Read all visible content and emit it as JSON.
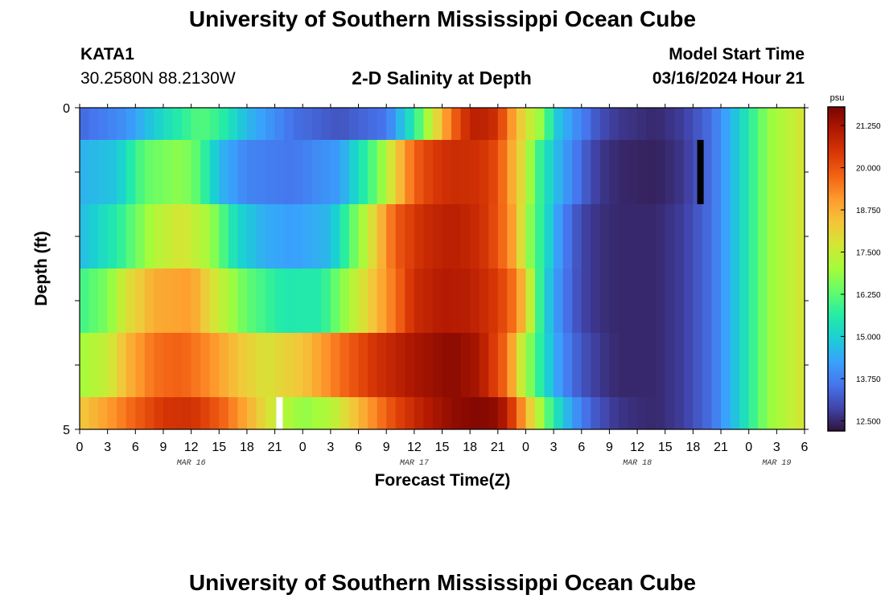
{
  "page": {
    "title_top": "University of Southern Mississippi Ocean Cube",
    "title_bottom": "University of Southern Mississippi Ocean Cube",
    "station_id": "KATA1",
    "station_coords": "30.2580N  88.2130W",
    "plot_title": "2-D Salinity at Depth",
    "model_start_label": "Model Start Time",
    "model_start_value": "03/16/2024 Hour 21"
  },
  "chart_data": {
    "type": "heatmap",
    "title": "2-D Salinity at Depth",
    "xlabel": "Forecast Time(Z)",
    "ylabel": "Depth (ft)",
    "x_tick_labels": [
      "0",
      "3",
      "6",
      "9",
      "12",
      "15",
      "18",
      "21",
      "0",
      "3",
      "6",
      "9",
      "12",
      "15",
      "18",
      "21",
      "0",
      "3",
      "6",
      "9",
      "12",
      "15",
      "18",
      "21",
      "0",
      "3",
      "6"
    ],
    "date_labels": [
      {
        "label": "MAR 16",
        "tick_index": 4
      },
      {
        "label": "MAR 17",
        "tick_index": 12
      },
      {
        "label": "MAR 18",
        "tick_index": 20
      },
      {
        "label": "MAR 19",
        "tick_index": 25
      }
    ],
    "x_hours_start": 0,
    "x_hours_end": 78,
    "y_tick_labels": [
      "0",
      "5"
    ],
    "ylim": [
      0,
      5
    ],
    "depth_layers": 5,
    "colorbar": {
      "unit": "psu",
      "min": 12.2,
      "max": 21.8,
      "tick_labels": [
        "21.250",
        "20.000",
        "18.750",
        "17.500",
        "16.250",
        "15.000",
        "13.750",
        "12.500"
      ],
      "tick_values": [
        21.25,
        20.0,
        18.75,
        17.5,
        16.25,
        15.0,
        13.75,
        12.5
      ],
      "colors": [
        "#30123b",
        "#4145ab",
        "#4675ed",
        "#39a2fc",
        "#1bcfd4",
        "#24eca6",
        "#61fc6c",
        "#a4fc3b",
        "#d1e834",
        "#f3c63a",
        "#fe9b2d",
        "#f36315",
        "#d93806",
        "#b11901",
        "#7a0402"
      ]
    },
    "current_time_marker_hour": 21.5,
    "start_time_marker_hour": 66.8,
    "rows": [
      {
        "depth_range": [
          0,
          0.5
        ],
        "hours": [
          0,
          5,
          9,
          13,
          15,
          18,
          23,
          28,
          33,
          36,
          38,
          40,
          42,
          43,
          45,
          46,
          48,
          50,
          51,
          53,
          55,
          56,
          58,
          62,
          65,
          68,
          71,
          74,
          78
        ],
        "values": [
          13.4,
          14.0,
          15.2,
          16.2,
          15.8,
          14.6,
          13.5,
          13.1,
          13.6,
          15.6,
          17.6,
          19.6,
          20.9,
          21.0,
          20.6,
          19.5,
          17.8,
          16.6,
          15.0,
          14.1,
          13.4,
          13.0,
          12.7,
          12.5,
          12.8,
          13.5,
          15.0,
          16.8,
          17.8
        ]
      },
      {
        "depth_range": [
          0.5,
          1.5
        ],
        "hours": [
          0,
          4,
          7,
          11,
          13,
          15,
          18,
          23,
          28,
          32,
          34,
          36,
          38,
          40,
          43,
          45,
          46,
          48,
          49,
          51,
          53,
          55,
          56,
          58,
          62,
          65,
          68,
          71,
          74,
          78
        ],
        "values": [
          14.5,
          14.8,
          16.3,
          16.8,
          16.1,
          14.6,
          13.8,
          13.6,
          14.2,
          16.4,
          18.2,
          19.8,
          20.4,
          20.7,
          20.6,
          20.1,
          19.2,
          17.6,
          16.2,
          14.8,
          13.8,
          13.0,
          12.7,
          12.5,
          12.4,
          12.7,
          13.5,
          15.0,
          16.8,
          17.8
        ]
      },
      {
        "depth_range": [
          1.5,
          2.5
        ],
        "hours": [
          0,
          4,
          8,
          11,
          14,
          17,
          20,
          23,
          27,
          31,
          34,
          37,
          40,
          43,
          45,
          47,
          48,
          50,
          52,
          54,
          56,
          58,
          62,
          65,
          68,
          71,
          74,
          78
        ],
        "values": [
          14.6,
          15.6,
          17.2,
          17.8,
          17.0,
          15.1,
          14.4,
          14.2,
          14.6,
          17.5,
          19.9,
          20.7,
          21.0,
          20.7,
          20.0,
          18.7,
          17.1,
          15.4,
          13.8,
          12.9,
          12.6,
          12.5,
          12.5,
          12.8,
          13.5,
          15.0,
          16.8,
          17.8
        ]
      },
      {
        "depth_range": [
          2.5,
          3.5
        ],
        "hours": [
          0,
          3,
          5,
          8,
          12,
          15,
          18,
          22,
          26,
          30,
          34,
          36,
          39,
          42,
          45,
          47,
          48,
          49,
          50,
          52,
          54,
          56,
          58,
          62,
          65,
          68,
          71,
          74,
          78
        ],
        "values": [
          15.9,
          16.6,
          17.8,
          18.8,
          19.0,
          17.5,
          16.3,
          15.5,
          15.6,
          17.6,
          19.6,
          20.7,
          21.1,
          21.0,
          20.4,
          19.4,
          18.2,
          16.6,
          15.1,
          13.7,
          12.9,
          12.6,
          12.5,
          12.5,
          12.8,
          13.5,
          15.0,
          16.8,
          17.8
        ]
      },
      {
        "depth_range": [
          3.5,
          4.5
        ],
        "hours": [
          0,
          3,
          5,
          8,
          11,
          14,
          17,
          20,
          24,
          28,
          32,
          36,
          40,
          43,
          46,
          47,
          48,
          49,
          50,
          52,
          54,
          56,
          58,
          62,
          65,
          68,
          71,
          74,
          78
        ],
        "values": [
          17.0,
          17.5,
          18.6,
          19.6,
          19.8,
          19.2,
          18.4,
          17.8,
          18.4,
          19.6,
          20.6,
          21.2,
          21.6,
          21.2,
          19.6,
          18.2,
          17.0,
          16.2,
          15.2,
          13.9,
          13.1,
          12.7,
          12.5,
          12.5,
          12.8,
          13.5,
          15.0,
          16.8,
          17.8
        ]
      },
      {
        "depth_range": [
          4.5,
          5.0
        ],
        "hours": [
          0,
          3,
          6,
          9,
          12,
          15,
          18,
          21,
          24,
          27,
          30,
          34,
          37,
          40,
          43,
          45,
          46,
          47,
          48,
          49,
          50,
          51,
          53,
          55,
          57,
          59,
          62,
          65,
          68,
          71,
          74,
          78
        ],
        "values": [
          18.3,
          19.0,
          19.8,
          20.5,
          20.6,
          19.9,
          18.8,
          17.5,
          16.8,
          17.2,
          18.6,
          20.2,
          21.0,
          21.5,
          21.7,
          21.5,
          20.9,
          19.9,
          18.7,
          17.7,
          16.6,
          15.6,
          14.2,
          13.3,
          12.8,
          12.6,
          12.5,
          12.8,
          13.5,
          15.0,
          16.8,
          17.8
        ]
      }
    ]
  }
}
